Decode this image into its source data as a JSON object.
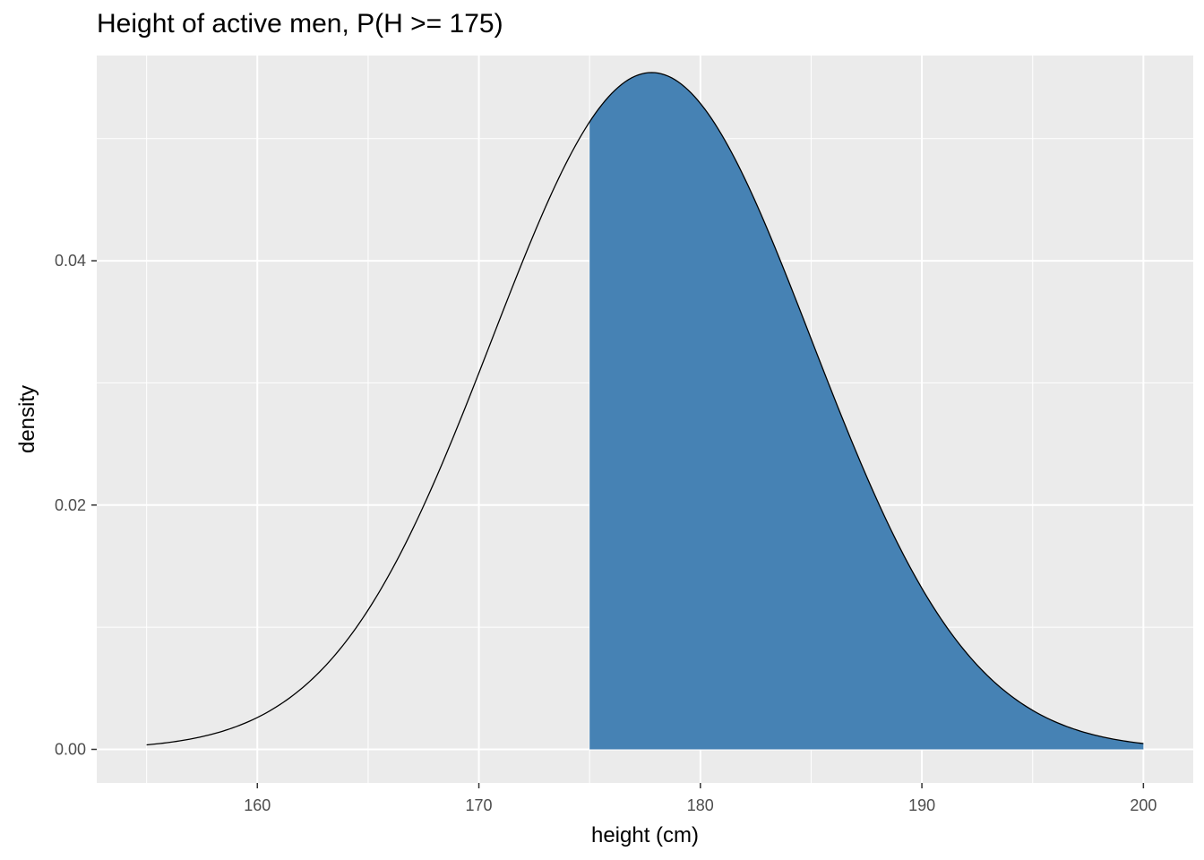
{
  "chart_data": {
    "type": "area",
    "title": "Height of active men, P(H >= 175)",
    "xlabel": "height (cm)",
    "ylabel": "density",
    "distribution": {
      "family": "normal",
      "mean": 177.8,
      "sd": 7.2
    },
    "x_range": [
      155,
      200
    ],
    "shaded_region": {
      "from": 175,
      "to": 200,
      "label": "P(H >= 175)"
    },
    "xlim": [
      152.75,
      202.25
    ],
    "ylim": [
      -0.00275,
      0.0568
    ],
    "x_ticks": [
      160,
      170,
      180,
      190,
      200
    ],
    "x_tick_labels": [
      "160",
      "170",
      "180",
      "190",
      "200"
    ],
    "y_ticks": [
      0.0,
      0.02,
      0.04
    ],
    "y_tick_labels": [
      "0.00",
      "0.02",
      "0.04"
    ],
    "fill_color": "#4682b4",
    "line_color": "#000000",
    "panel_color": "#ebebeb",
    "grid": true
  }
}
